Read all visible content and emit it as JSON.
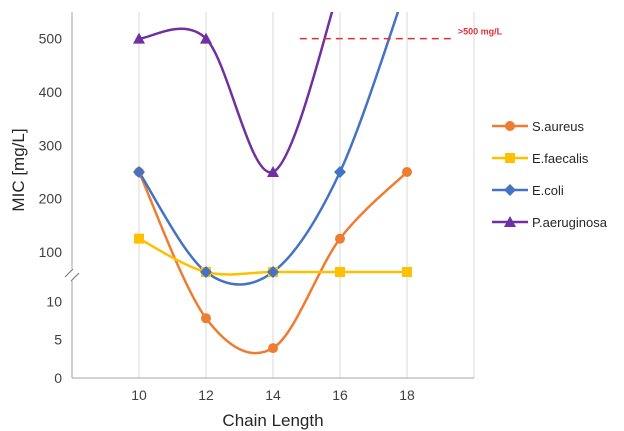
{
  "chart_data": {
    "type": "line",
    "xlabel": "Chain Length",
    "ylabel": "MIC [mg/L]",
    "x": [
      10,
      12,
      14,
      16,
      18
    ],
    "x_ticks": [
      "10",
      "12",
      "14",
      "16",
      "18"
    ],
    "xlim": [
      8,
      20
    ],
    "y_axis": {
      "broken": true,
      "lower_segment": {
        "ticks": [
          0,
          5,
          10
        ],
        "ylim": [
          0,
          12
        ]
      },
      "upper_segment": {
        "ticks": [
          100,
          200,
          300,
          400,
          500
        ],
        "ylim": [
          70,
          550
        ]
      }
    },
    "y_tick_labels": [
      "0",
      "5",
      "10",
      "100",
      "200",
      "300",
      "400",
      "500"
    ],
    "grid": "vertical",
    "smoothed": true,
    "legend_position": "right",
    "series": [
      {
        "name": "S.aureus",
        "values": [
          250,
          7.8,
          3.9,
          125,
          250
        ],
        "color": "#ED7D31",
        "marker": "circle"
      },
      {
        "name": "E.faecalis",
        "values": [
          125,
          62.5,
          62.5,
          62.5,
          62.5
        ],
        "color": "#FFC000",
        "marker": "square"
      },
      {
        "name": "E.coli",
        "values": [
          250,
          62.5,
          62.5,
          250,
          600
        ],
        "color": "#4472C4",
        "marker": "diamond"
      },
      {
        "name": "P.aeruginosa",
        "values": [
          500,
          500,
          250,
          600,
          null
        ],
        "color": "#7030A0",
        "marker": "triangle"
      }
    ],
    "annotations": [
      {
        "text": ">500 mg/L",
        "y": 500,
        "x_start": 14.8,
        "x_end": 19.4,
        "color": "#E0303A",
        "line_style": "dashed"
      }
    ]
  }
}
